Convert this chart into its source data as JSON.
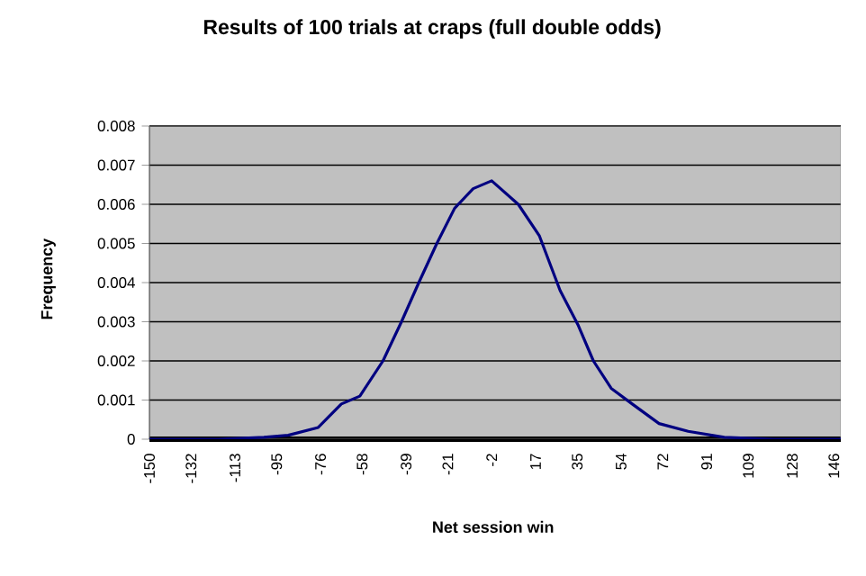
{
  "chart_data": {
    "type": "line",
    "title": "Results of 100 trials at craps (full double odds)",
    "xlabel": "Net session win",
    "ylabel": "Frequency",
    "x": [
      -150,
      -120,
      -100.5,
      -90,
      -77,
      -67,
      -59,
      -49,
      -41,
      -33.5,
      -25.7,
      -18,
      -10,
      -2,
      9.5,
      18.6,
      27.6,
      35.5,
      42,
      49.7,
      58.8,
      70.4,
      83,
      98.6,
      120,
      149
    ],
    "series": [
      {
        "color": "#000080",
        "values": [
          0,
          0,
          5e-05,
          0.0001,
          0.0003,
          0.0009,
          0.0011,
          0.002,
          0.003,
          0.004,
          0.005,
          0.0059,
          0.0064,
          0.0066,
          0.006,
          0.0052,
          0.0038,
          0.0029,
          0.002,
          0.0013,
          0.0009,
          0.0004,
          0.0002,
          5e-05,
          0,
          0
        ]
      }
    ],
    "xlim": [
      -150,
      149
    ],
    "ylim": [
      0,
      0.008
    ],
    "xticks": [
      -150,
      -132,
      -113,
      -95,
      -76,
      -58,
      -39,
      -21,
      -2,
      17,
      35,
      54,
      72,
      91,
      109,
      128,
      146
    ],
    "yticks": [
      0,
      0.001,
      0.002,
      0.003,
      0.004,
      0.005,
      0.006,
      0.007,
      0.008
    ],
    "grid": "y",
    "marker": "none",
    "line_style": "solid"
  }
}
